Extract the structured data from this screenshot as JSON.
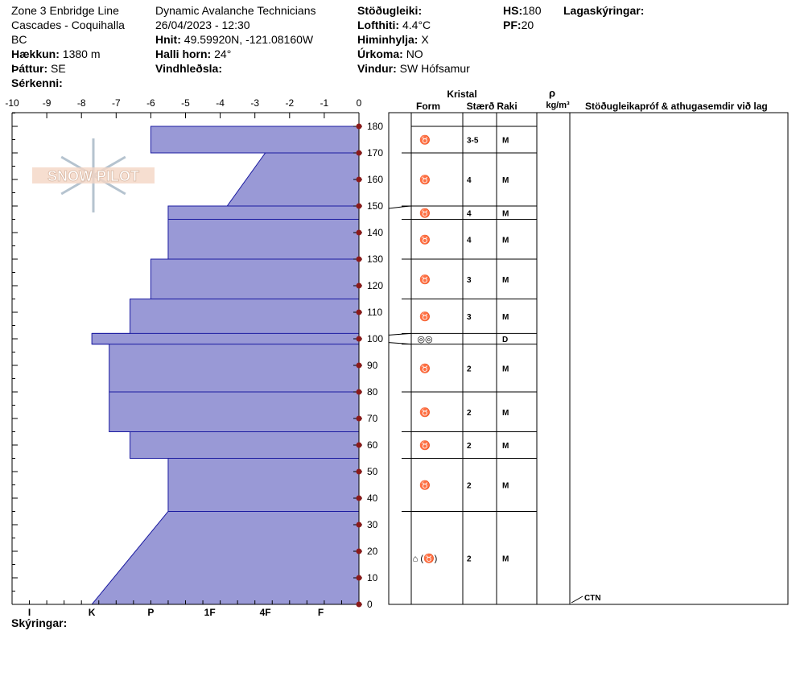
{
  "header": {
    "location_line1": "Zone 3 Enbridge Line",
    "location_line2": "Cascades - Coquihalla",
    "location_line3": "BC",
    "elevation_label": "Hækkun:",
    "elevation_value": "1380 m",
    "aspect_label": "Þáttur:",
    "aspect_value": "SE",
    "features_label": "Sérkenni:",
    "organization": "Dynamic Avalanche Technicians",
    "datetime": "26/04/2023 - 12:30",
    "coords_label": "Hnit:",
    "coords_value": "49.59920N, -121.08160W",
    "slope_label": "Halli horn:",
    "slope_value": "24°",
    "wind_loading_label": "Vindhleðsla:",
    "stability_label": "Stöðugleiki:",
    "air_temp_label": "Lofthiti:",
    "air_temp_value": "4.4°C",
    "sky_label": "Himinhylja:",
    "sky_value": "X",
    "precip_label": "Úrkoma:",
    "precip_value": "NO",
    "wind_label": "Vindur:",
    "wind_value": "SW Hófsamur",
    "hs_label": "HS:",
    "hs_value": "180",
    "pf_label": "PF:",
    "pf_value": "20",
    "layer_notes_label": "Lagaskýringar:"
  },
  "legend_label": "Skýringar:",
  "watermark_text": "SNOW PILOT",
  "colors": {
    "layer_fill": "#9999D6",
    "layer_line": "#1A1AA0",
    "tick_dot": "#8B1A1A"
  },
  "table": {
    "crystal_header": "Kristal",
    "form_header": "Form",
    "size_header": "Stærð",
    "moisture_header": "Raki",
    "density_header_top": "ρ",
    "density_header_bottom": "kg/m³",
    "tests_header": "Stöðugleikapróf & athugasemdir við lag",
    "test_result": "CTN",
    "rows": [
      {
        "top": 180,
        "bottom": 170,
        "form": "♉",
        "size": "3-5",
        "moisture": "M"
      },
      {
        "top": 170,
        "bottom": 150,
        "form": "♉",
        "size": "4",
        "moisture": "M"
      },
      {
        "top": 150,
        "bottom": 145,
        "form": "♉",
        "size": "4",
        "moisture": "M"
      },
      {
        "top": 145,
        "bottom": 130,
        "form": "♉",
        "size": "4",
        "moisture": "M"
      },
      {
        "top": 130,
        "bottom": 115,
        "form": "♉",
        "size": "3",
        "moisture": "M"
      },
      {
        "top": 115,
        "bottom": 102,
        "form": "♉",
        "size": "3",
        "moisture": "M"
      },
      {
        "top": 102,
        "bottom": 98,
        "form": "◎◎",
        "size": "",
        "moisture": "D"
      },
      {
        "top": 98,
        "bottom": 80,
        "form": "♉",
        "size": "2",
        "moisture": "M"
      },
      {
        "top": 80,
        "bottom": 65,
        "form": "♉",
        "size": "2",
        "moisture": "M"
      },
      {
        "top": 65,
        "bottom": 55,
        "form": "♉",
        "size": "2",
        "moisture": "M"
      },
      {
        "top": 55,
        "bottom": 35,
        "form": "♉",
        "size": "2",
        "moisture": "M"
      },
      {
        "top": 35,
        "bottom": 0,
        "form": "⌂ (♉)",
        "size": "2",
        "moisture": "M"
      }
    ]
  },
  "chart_data": {
    "type": "area",
    "x_ticks": [
      -10,
      -9,
      -8,
      -7,
      -6,
      -5,
      -4,
      -3,
      -2,
      -1,
      0
    ],
    "hardness_labels": [
      "I",
      "K",
      "P",
      "1F",
      "4F",
      "F"
    ],
    "hardness_positions": [
      -9.5,
      -7.7,
      -6,
      -4.3,
      -2.7,
      -1.1
    ],
    "y_ticks": [
      0,
      10,
      20,
      30,
      40,
      50,
      60,
      70,
      80,
      90,
      100,
      110,
      120,
      130,
      140,
      150,
      160,
      170,
      180
    ],
    "xlim": [
      -10,
      0
    ],
    "ylim": [
      0,
      185
    ],
    "hardness_profile": [
      {
        "height": 180,
        "x": -6.0
      },
      {
        "height": 170,
        "x": -6.0
      },
      {
        "height": 170,
        "x": -2.7
      },
      {
        "height": 150,
        "x": -3.8
      },
      {
        "height": 150,
        "x": -5.5
      },
      {
        "height": 145,
        "x": -5.5
      },
      {
        "height": 130,
        "x": -5.5
      },
      {
        "height": 130,
        "x": -6.0
      },
      {
        "height": 115,
        "x": -6.0
      },
      {
        "height": 115,
        "x": -6.6
      },
      {
        "height": 102,
        "x": -6.6
      },
      {
        "height": 102,
        "x": -7.7
      },
      {
        "height": 98,
        "x": -7.7
      },
      {
        "height": 98,
        "x": -7.2
      },
      {
        "height": 80,
        "x": -7.2
      },
      {
        "height": 65,
        "x": -7.2
      },
      {
        "height": 65,
        "x": -6.6
      },
      {
        "height": 55,
        "x": -6.6
      },
      {
        "height": 55,
        "x": -5.5
      },
      {
        "height": 35,
        "x": -5.5
      },
      {
        "height": 0,
        "x": -7.7
      }
    ],
    "layer_boundaries": [
      170,
      150,
      145,
      130,
      115,
      102,
      98,
      80,
      65,
      55,
      35
    ]
  }
}
